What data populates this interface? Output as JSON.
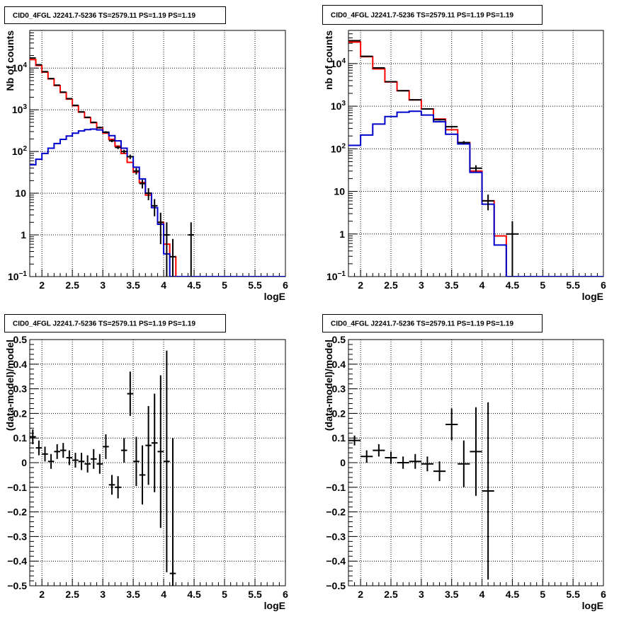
{
  "colors": {
    "data": "#000000",
    "total_model": "#ff0000",
    "source_model": "#0000cc",
    "grid": "#000000"
  },
  "chart_data": [
    {
      "panel": "top-left",
      "type": "histogram",
      "title": "CID0_4FGL J2241.7-5236 TS=2579.11 PS=1.19 PS=1.19",
      "xlabel": "logE",
      "ylabel": "Nb of counts",
      "xlim": [
        1.8,
        6.0
      ],
      "ylim": [
        0.1,
        80000
      ],
      "yscale": "log",
      "grid": true,
      "xticks": [
        "2",
        "2.5",
        "3",
        "3.5",
        "4",
        "4.5",
        "5",
        "5.5",
        "6"
      ],
      "yticks": [
        "10^-1",
        "1",
        "10",
        "10^2",
        "10^3",
        "10^4"
      ],
      "bin_edges": [
        1.8,
        1.9,
        2.0,
        2.1,
        2.2,
        2.3,
        2.4,
        2.5,
        2.6,
        2.7,
        2.8,
        2.9,
        3.0,
        3.1,
        3.2,
        3.3,
        3.4,
        3.5,
        3.6,
        3.7,
        3.8,
        3.9,
        4.0,
        4.1,
        4.2,
        4.3,
        4.4,
        4.5,
        4.6,
        4.7,
        4.8,
        4.9,
        5.0,
        5.1,
        5.2,
        5.3,
        5.4,
        5.5,
        5.6,
        5.7,
        5.8,
        5.9,
        6.0
      ],
      "series": [
        {
          "role": "total_model",
          "values": [
            16000,
            11500,
            8000,
            5500,
            3800,
            2600,
            1800,
            1250,
            880,
            650,
            490,
            370,
            275,
            195,
            135,
            90,
            55,
            32,
            18,
            9,
            4.5,
            2.0,
            0.6,
            0.3,
            0.1,
            0.1,
            0.1,
            0.1,
            0.1,
            0.1,
            0.1,
            0.1,
            0.1,
            0.1,
            0.1,
            0.1,
            0.1,
            0.1,
            0.1,
            0.1,
            0.1,
            0.1
          ]
        },
        {
          "role": "source_model",
          "values": [
            48,
            65,
            90,
            120,
            155,
            195,
            235,
            275,
            310,
            335,
            345,
            330,
            290,
            240,
            180,
            120,
            75,
            42,
            22,
            10,
            4.5,
            1.8,
            0.35,
            0.1,
            0.1,
            0.1,
            0.1,
            0.1,
            0.1,
            0.1,
            0.1,
            0.1,
            0.1,
            0.1,
            0.1,
            0.1,
            0.1,
            0.1,
            0.1,
            0.1,
            0.1,
            0.1
          ]
        },
        {
          "role": "data",
          "kind": "points",
          "x": [
            1.85,
            1.95,
            2.05,
            2.15,
            2.25,
            2.35,
            2.45,
            2.55,
            2.65,
            2.75,
            2.85,
            2.95,
            3.05,
            3.15,
            3.25,
            3.35,
            3.45,
            3.55,
            3.65,
            3.75,
            3.85,
            3.95,
            4.05,
            4.15,
            4.45
          ],
          "y": [
            17500,
            12000,
            8200,
            5600,
            3900,
            2650,
            1850,
            1280,
            890,
            660,
            500,
            375,
            290,
            180,
            125,
            100,
            75,
            34,
            17,
            10,
            5,
            2,
            1,
            0.3,
            1
          ],
          "yerr": [
            132,
            110,
            91,
            75,
            62,
            51,
            43,
            36,
            30,
            26,
            22,
            19,
            17,
            13,
            11,
            10,
            9,
            6,
            4,
            3.2,
            2.2,
            1.4,
            1,
            0.5,
            1
          ]
        }
      ]
    },
    {
      "panel": "top-right",
      "type": "histogram",
      "title": "CID0_4FGL J2241.7-5236 TS=2579.11 PS=1.19 PS=1.19",
      "xlabel": "logE",
      "ylabel": "nb of counts",
      "xlim": [
        1.8,
        6.0
      ],
      "ylim": [
        0.1,
        60000
      ],
      "yscale": "log",
      "grid": true,
      "xticks": [
        "2",
        "2.5",
        "3",
        "3.5",
        "4",
        "4.5",
        "5",
        "5.5",
        "6"
      ],
      "yticks": [
        "10^-1",
        "1",
        "10",
        "10^2",
        "10^3",
        "10^4"
      ],
      "bin_edges": [
        1.8,
        2.0,
        2.2,
        2.4,
        2.6,
        2.8,
        3.0,
        3.2,
        3.4,
        3.6,
        3.8,
        4.0,
        4.2,
        4.4,
        4.6,
        4.8,
        5.0,
        5.2,
        5.4,
        5.6,
        5.8,
        6.0
      ],
      "series": [
        {
          "role": "total_model",
          "values": [
            32000,
            14500,
            7500,
            3700,
            2300,
            1400,
            860,
            500,
            280,
            140,
            30,
            6,
            0.9,
            0.1,
            0.1,
            0.1,
            0.1,
            0.1,
            0.1,
            0.1,
            0.1
          ]
        },
        {
          "role": "source_model",
          "values": [
            120,
            210,
            380,
            570,
            720,
            760,
            620,
            430,
            220,
            130,
            28,
            5,
            0.55,
            0.1,
            0.1,
            0.1,
            0.1,
            0.1,
            0.1,
            0.1,
            0.1
          ]
        },
        {
          "role": "data",
          "kind": "points",
          "x": [
            1.9,
            2.1,
            2.3,
            2.5,
            2.7,
            2.9,
            3.1,
            3.3,
            3.5,
            3.7,
            3.9,
            4.1,
            4.5
          ],
          "y": [
            34500,
            14800,
            7900,
            3750,
            2310,
            1410,
            860,
            480,
            330,
            140,
            35,
            6,
            1
          ],
          "yerr": [
            186,
            122,
            89,
            61,
            48,
            38,
            29,
            22,
            18,
            12,
            6,
            2.4,
            1
          ]
        }
      ]
    },
    {
      "panel": "bottom-left",
      "type": "scatter",
      "title": "CID0_4FGL J2241.7-5236 TS=2579.11 PS=1.19 PS=1.19",
      "xlabel": "logE",
      "ylabel": "(data-model)/model",
      "xlim": [
        1.8,
        6.0
      ],
      "ylim": [
        -0.5,
        0.5
      ],
      "grid": true,
      "xticks": [
        "2",
        "2.5",
        "3",
        "3.5",
        "4",
        "4.5",
        "5",
        "5.5",
        "6"
      ],
      "yticks": [
        "−0.5",
        "−0.4",
        "−0.3",
        "−0.2",
        "−0.1",
        "0",
        "0.1",
        "0.2",
        "0.3",
        "0.4",
        "0.5"
      ],
      "series": [
        {
          "role": "data",
          "x": [
            1.85,
            1.95,
            2.05,
            2.15,
            2.25,
            2.35,
            2.45,
            2.55,
            2.65,
            2.75,
            2.85,
            2.95,
            3.05,
            3.15,
            3.25,
            3.35,
            3.45,
            3.55,
            3.65,
            3.75,
            3.85,
            3.95,
            4.05,
            4.15
          ],
          "y": [
            0.105,
            0.06,
            0.035,
            0.005,
            0.045,
            0.05,
            0.02,
            0.01,
            0.005,
            -0.005,
            0.015,
            -0.005,
            0.065,
            -0.09,
            -0.1,
            0.05,
            0.28,
            0.005,
            -0.05,
            0.07,
            0.08,
            0.045,
            0.005,
            -0.45
          ],
          "yerr": [
            0.03,
            0.03,
            0.03,
            0.03,
            0.03,
            0.03,
            0.03,
            0.03,
            0.035,
            0.035,
            0.04,
            0.04,
            0.05,
            0.04,
            0.045,
            0.05,
            0.09,
            0.1,
            0.12,
            0.16,
            0.2,
            0.31,
            0.45,
            0.55
          ]
        }
      ]
    },
    {
      "panel": "bottom-right",
      "type": "scatter",
      "title": "CID0_4FGL J2241.7-5236 TS=2579.11 PS=1.19 PS=1.19",
      "xlabel": "logE",
      "ylabel": "(data-model)/model",
      "xlim": [
        1.8,
        6.0
      ],
      "ylim": [
        -0.5,
        0.5
      ],
      "grid": true,
      "xticks": [
        "2",
        "2.5",
        "3",
        "3.5",
        "4",
        "4.5",
        "5",
        "5.5",
        "6"
      ],
      "yticks": [
        "−0.5",
        "−0.4",
        "−0.3",
        "−0.2",
        "−0.1",
        "0",
        "0.1",
        "0.2",
        "0.3",
        "0.4",
        "0.5"
      ],
      "series": [
        {
          "role": "data",
          "x": [
            1.9,
            2.1,
            2.3,
            2.5,
            2.7,
            2.9,
            3.1,
            3.3,
            3.5,
            3.7,
            3.9,
            4.1
          ],
          "y": [
            0.09,
            0.025,
            0.05,
            0.02,
            0.0,
            0.005,
            -0.005,
            -0.035,
            0.155,
            -0.005,
            0.045,
            -0.115
          ],
          "yerr": [
            0.02,
            0.025,
            0.025,
            0.025,
            0.025,
            0.03,
            0.03,
            0.04,
            0.065,
            0.095,
            0.18,
            0.36
          ]
        }
      ]
    }
  ]
}
